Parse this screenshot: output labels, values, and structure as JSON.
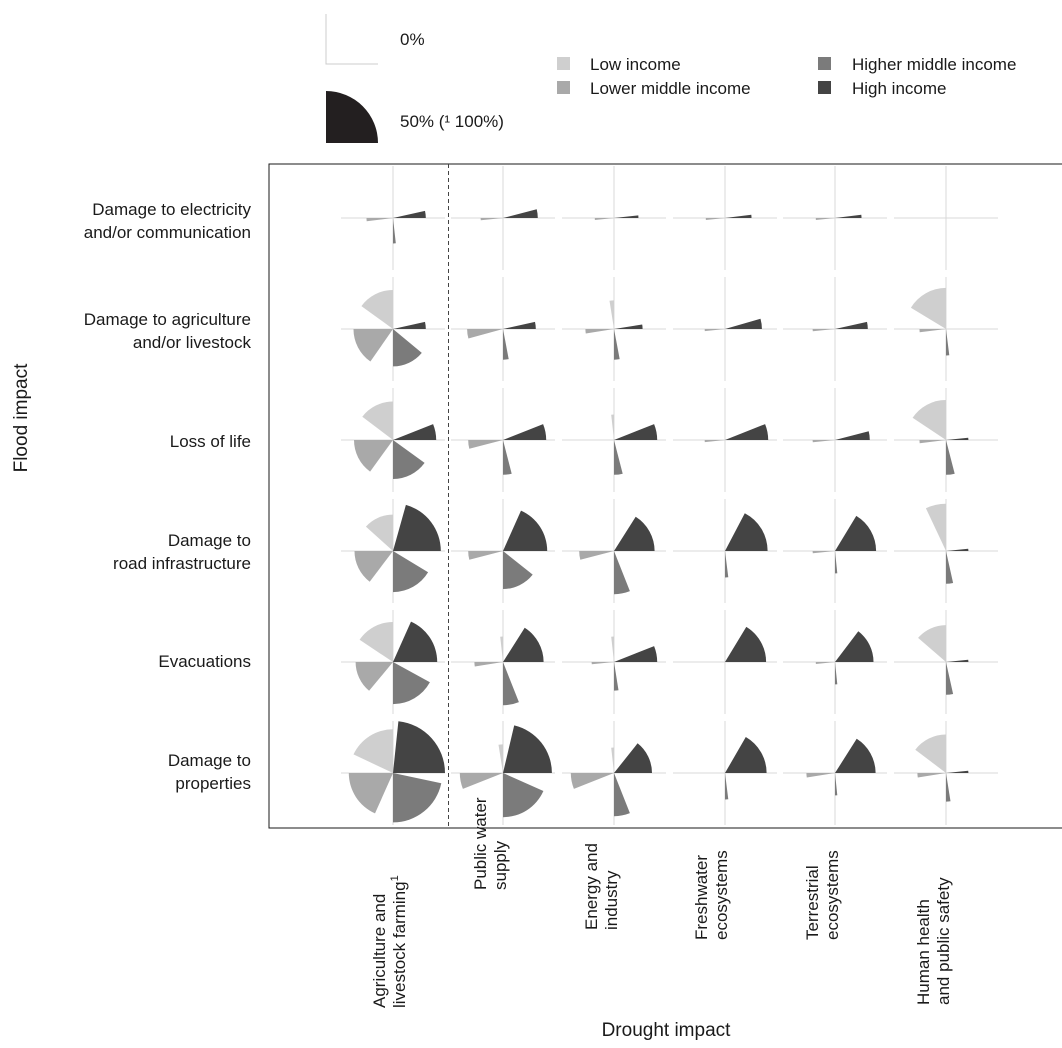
{
  "chart_data": {
    "type": "polar-glyph-matrix",
    "xlabel": "Drought impact",
    "ylabel": "Flood impact",
    "scale_legend": {
      "zero_label": "0%",
      "max_label": "50% (¹ 100%)"
    },
    "groups": [
      {
        "name": "Low income",
        "color": "#cfcfcf"
      },
      {
        "name": "Lower middle income",
        "color": "#a9a9a9"
      },
      {
        "name": "Higher middle income",
        "color": "#7b7b7b"
      },
      {
        "name": "High income",
        "color": "#444444"
      }
    ],
    "columns": [
      {
        "line1": "Agriculture and",
        "line2": "livestock farming",
        "sup": "1"
      },
      {
        "line1": "Public water",
        "line2": "supply",
        "sup": ""
      },
      {
        "line1": "Energy and",
        "line2": "industry",
        "sup": ""
      },
      {
        "line1": "Freshwater",
        "line2": "ecosystems",
        "sup": ""
      },
      {
        "line1": "Terrestrial",
        "line2": "ecosystems",
        "sup": ""
      },
      {
        "line1": "Human health",
        "line2": "and public safety",
        "sup": ""
      }
    ],
    "rows": [
      {
        "line1": "Damage to electricity",
        "line2": "and/or communication"
      },
      {
        "line1": "Damage to agriculture",
        "line2": "and/or livestock"
      },
      {
        "line1": "",
        "line2": "Loss of life"
      },
      {
        "line1": "Damage to",
        "line2": "road infrastructure"
      },
      {
        "line1": "",
        "line2": "Evacuations"
      },
      {
        "line1": "Damage to",
        "line2": "properties"
      }
    ],
    "value_order": [
      "Low income",
      "Lower middle income",
      "Higher middle income",
      "High income"
    ],
    "values": [
      [
        [
          0,
          0.08,
          0.07,
          0.14
        ],
        [
          0,
          0.04,
          0,
          0.16
        ],
        [
          0,
          0.01,
          0,
          0.06
        ],
        [
          0,
          0.01,
          0,
          0.08
        ],
        [
          0,
          0.01,
          0,
          0.08
        ],
        [
          0,
          0,
          0,
          0
        ]
      ],
      [
        [
          0.4,
          0.42,
          0.34,
          0.14
        ],
        [
          0,
          0.17,
          0.12,
          0.14
        ],
        [
          0.1,
          0.1,
          0.12,
          0.1
        ],
        [
          0,
          0.02,
          0,
          0.18
        ],
        [
          0,
          0.04,
          0,
          0.14
        ],
        [
          0.48,
          0.08,
          0.08,
          0
        ]
      ],
      [
        [
          0.38,
          0.4,
          0.4,
          0.24
        ],
        [
          0,
          0.16,
          0.16,
          0.24
        ],
        [
          0.07,
          0,
          0.16,
          0.24
        ],
        [
          0,
          0.02,
          0,
          0.24
        ],
        [
          0,
          0.04,
          0,
          0.16
        ],
        [
          0.44,
          0.08,
          0.16,
          0.04
        ]
      ],
      [
        [
          0.3,
          0.38,
          0.48,
          0.74
        ],
        [
          0,
          0.16,
          0.36,
          0.6
        ],
        [
          0,
          0.16,
          0.24,
          0.46
        ],
        [
          0,
          0,
          0.08,
          0.54
        ],
        [
          0,
          0.04,
          0.04,
          0.48
        ],
        [
          0.28,
          0,
          0.14,
          0.04
        ]
      ],
      [
        [
          0.44,
          0.34,
          0.52,
          0.6
        ],
        [
          0.07,
          0.1,
          0.24,
          0.46
        ],
        [
          0.07,
          0.04,
          0.1,
          0.24
        ],
        [
          0,
          0,
          0,
          0.48
        ],
        [
          0,
          0.01,
          0.04,
          0.38
        ],
        [
          0.32,
          0,
          0.14,
          0.04
        ]
      ],
      [
        [
          0.58,
          0.6,
          0.8,
          0.9
        ],
        [
          0.1,
          0.24,
          0.6,
          0.78
        ],
        [
          0.07,
          0.24,
          0.24,
          0.36
        ],
        [
          0,
          0,
          0.08,
          0.5
        ],
        [
          0,
          0.1,
          0.04,
          0.46
        ],
        [
          0.38,
          0.1,
          0.1,
          0.04
        ]
      ]
    ]
  }
}
